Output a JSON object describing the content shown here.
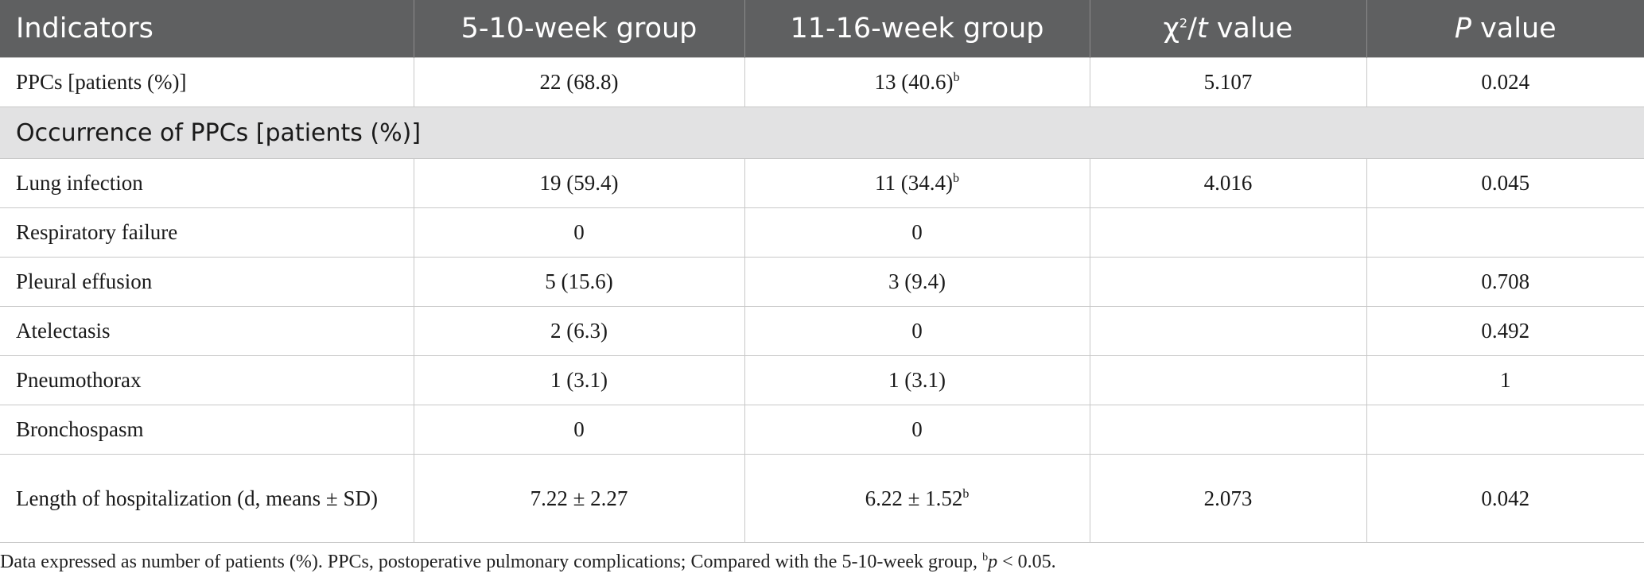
{
  "header": {
    "indicators": "Indicators",
    "group1": "5-10-week group",
    "group2": "11-16-week group",
    "stat_chi": "χ",
    "stat_sq": "2",
    "stat_slash": "/",
    "stat_t": "t",
    "stat_value": " value",
    "p_letter": "P",
    "p_value": " value"
  },
  "rows": [
    {
      "indicator": "PPCs [patients (%)]",
      "g1": "22 (68.8)",
      "g2": "13 (40.6)",
      "g2_sup": "b",
      "stat": "5.107",
      "p": "0.024"
    },
    {
      "section": "Occurrence of PPCs [patients (%)]"
    },
    {
      "indicator": "Lung infection",
      "g1": "19 (59.4)",
      "g2": "11 (34.4)",
      "g2_sup": "b",
      "stat": "4.016",
      "p": "0.045"
    },
    {
      "indicator": "Respiratory failure",
      "g1": "0",
      "g2": "0",
      "g2_sup": "",
      "stat": "",
      "p": ""
    },
    {
      "indicator": "Pleural effusion",
      "g1": "5 (15.6)",
      "g2": "3 (9.4)",
      "g2_sup": "",
      "stat": "",
      "p": "0.708"
    },
    {
      "indicator": "Atelectasis",
      "g1": "2 (6.3)",
      "g2": "0",
      "g2_sup": "",
      "stat": "",
      "p": "0.492"
    },
    {
      "indicator": "Pneumothorax",
      "g1": "1 (3.1)",
      "g2": "1 (3.1)",
      "g2_sup": "",
      "stat": "",
      "p": "1"
    },
    {
      "indicator": "Bronchospasm",
      "g1": "0",
      "g2": "0",
      "g2_sup": "",
      "stat": "",
      "p": ""
    },
    {
      "indicator": "Length of hospitalization (d, means ± SD)",
      "g1": "7.22 ± 2.27",
      "g2": "6.22 ± 1.52",
      "g2_sup": "b",
      "stat": "2.073",
      "p": "0.042"
    }
  ],
  "footnote": {
    "text": "Data expressed as number of patients (%). PPCs, postoperative pulmonary complications; Compared with the 5-10-week group, ",
    "sup": "b",
    "p_italic": "p",
    "tail": " < 0.05."
  }
}
